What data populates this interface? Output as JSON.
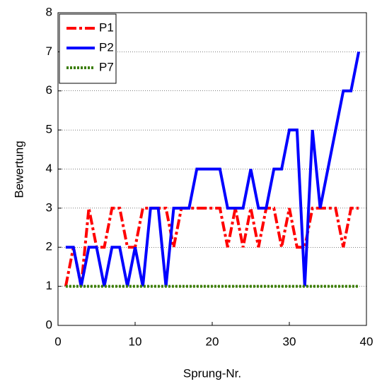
{
  "chart_data": {
    "type": "line",
    "x_label": "Sprung-Nr.",
    "y_label": "Bewertung",
    "x": [
      1,
      2,
      3,
      4,
      5,
      6,
      7,
      8,
      9,
      10,
      11,
      12,
      13,
      14,
      15,
      16,
      17,
      18,
      19,
      20,
      21,
      22,
      23,
      24,
      25,
      26,
      27,
      28,
      29,
      30,
      31,
      32,
      33,
      34,
      35,
      36,
      37,
      38,
      39
    ],
    "series": [
      {
        "name": "P1",
        "color": "#ff0000",
        "dash": "14 4 4 4",
        "values": [
          1,
          2,
          1,
          3,
          2,
          2,
          3,
          3,
          2,
          2,
          3,
          3,
          3,
          3,
          2,
          3,
          3,
          3,
          3,
          3,
          3,
          2,
          3,
          2,
          3,
          2,
          3,
          3,
          2,
          3,
          2,
          2,
          3,
          3,
          3,
          3,
          2,
          3,
          3
        ]
      },
      {
        "name": "P2",
        "color": "#0000ff",
        "dash": "none",
        "values": [
          2,
          2,
          1,
          2,
          2,
          1,
          2,
          2,
          1,
          2,
          1,
          3,
          3,
          1,
          3,
          3,
          3,
          4,
          4,
          4,
          4,
          3,
          3,
          3,
          4,
          3,
          3,
          4,
          4,
          5,
          5,
          1,
          5,
          3,
          4,
          5,
          6,
          6,
          7
        ]
      },
      {
        "name": "P7",
        "color": "#3a7d00",
        "dash": "3 2",
        "values": [
          1,
          1,
          1,
          1,
          1,
          1,
          1,
          1,
          1,
          1,
          1,
          1,
          1,
          1,
          1,
          1,
          1,
          1,
          1,
          1,
          1,
          1,
          1,
          1,
          1,
          1,
          1,
          1,
          1,
          1,
          1,
          1,
          1,
          1,
          1,
          1,
          1,
          1,
          1
        ]
      }
    ],
    "xlim": [
      0,
      40
    ],
    "xticks": [
      0,
      10,
      20,
      30,
      40
    ],
    "ylim": [
      0,
      8
    ],
    "yticks": [
      0,
      1,
      2,
      3,
      4,
      5,
      6,
      7,
      8
    ],
    "grid": true,
    "legend": "upper left"
  }
}
